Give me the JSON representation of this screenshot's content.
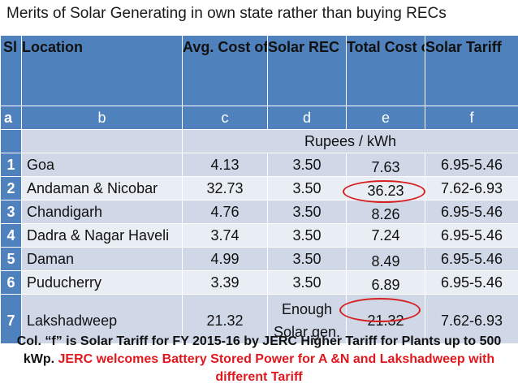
{
  "title": "Merits of  Solar Generating in own state rather than buying RECs",
  "headers": [
    "Sl",
    "Location",
    "Avg. Cost of Power Purchase",
    "Solar REC",
    "Total Cost of RPO",
    "Solar Tariff"
  ],
  "letters": [
    "a",
    "b",
    "c",
    "d",
    "e",
    "f"
  ],
  "units": "Rupees / kWh",
  "rows": [
    {
      "sl": "1",
      "location": "Goa",
      "avg_cost": "4.13",
      "solar_rec": "3.50",
      "total_rpo": "7.63",
      "tariff": "6.95-5.46"
    },
    {
      "sl": "2",
      "location": "Andaman & Nicobar",
      "avg_cost": "32.73",
      "solar_rec": "3.50",
      "total_rpo": "36.23",
      "tariff": "7.62-6.93"
    },
    {
      "sl": "3",
      "location": "Chandigarh",
      "avg_cost": "4.76",
      "solar_rec": "3.50",
      "total_rpo": "8.26",
      "tariff": "6.95-5.46"
    },
    {
      "sl": "4",
      "location": "Dadra & Nagar Haveli",
      "avg_cost": "3.74",
      "solar_rec": "3.50",
      "total_rpo": "7.24",
      "tariff": "6.95-5.46"
    },
    {
      "sl": "5",
      "location": "Daman",
      "avg_cost": "4.99",
      "solar_rec": "3.50",
      "total_rpo": "8.49",
      "tariff": "6.95-5.46"
    },
    {
      "sl": "6",
      "location": "Puducherry",
      "avg_cost": "3.39",
      "solar_rec": "3.50",
      "total_rpo": "6.89",
      "tariff": "6.95-5.46"
    },
    {
      "sl": "7",
      "location": "Lakshadweep",
      "avg_cost": "21.32",
      "solar_rec": "Enough Solar gen.",
      "total_rpo": "21.32",
      "tariff": "7.62-6.93"
    }
  ],
  "footnote": {
    "part1": "Col. “f” is Solar Tariff for FY 2015-16  by JERC Higher Tariff for Plants up to 500 kWp.",
    "part2": "JERC welcomes Battery Stored Power for A &N and Lakshadweep with different Tariff"
  },
  "colors": {
    "header_blue": "#4f81bd",
    "row_light": "#d0d8e8",
    "row_lighter": "#e9edf4",
    "highlight_red": "#e0181e"
  }
}
